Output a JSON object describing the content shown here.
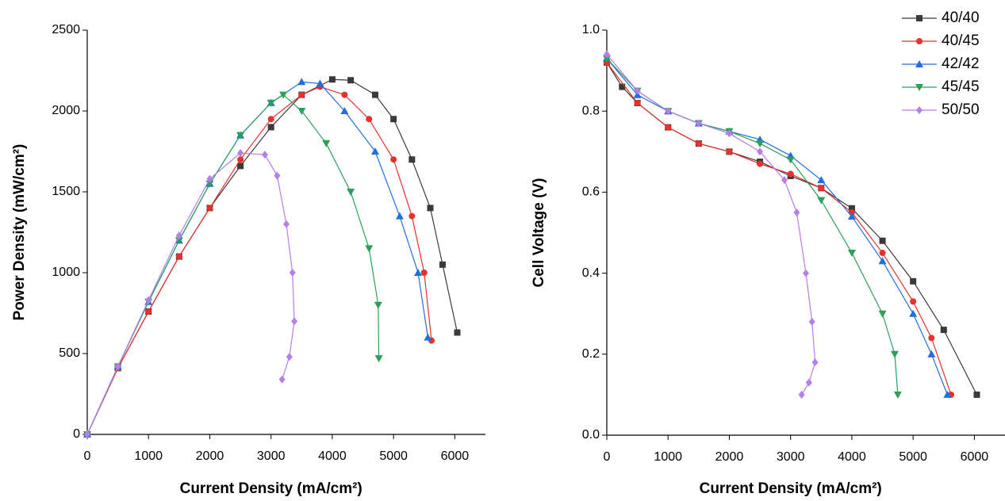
{
  "chart_data": [
    {
      "type": "line",
      "xlabel": "Current Density (mA/cm²)",
      "ylabel": "Power Density (mW/cm²)",
      "xlim": [
        0,
        6500
      ],
      "xticks": [
        0,
        1000,
        2000,
        3000,
        4000,
        5000,
        6000
      ],
      "ylim": [
        0,
        2500
      ],
      "yticks": [
        0,
        500,
        1000,
        1500,
        2000,
        2500
      ],
      "series": [
        {
          "color": "#3a3a3a",
          "marker": "square",
          "x": [
            0,
            500,
            1000,
            1500,
            2000,
            2500,
            3000,
            3500,
            4000,
            4300,
            4700,
            5000,
            5300,
            5600,
            5800,
            6040
          ],
          "values": [
            0,
            410,
            760,
            1100,
            1400,
            1660,
            1900,
            2100,
            2195,
            2190,
            2100,
            1950,
            1700,
            1400,
            1050,
            630
          ]
        },
        {
          "color": "#e8302c",
          "marker": "circle",
          "x": [
            0,
            500,
            1000,
            1500,
            2000,
            2500,
            3000,
            3500,
            3800,
            4200,
            4600,
            5000,
            5300,
            5500,
            5620
          ],
          "values": [
            0,
            410,
            760,
            1100,
            1400,
            1700,
            1950,
            2100,
            2150,
            2100,
            1950,
            1700,
            1350,
            1000,
            580
          ]
        },
        {
          "color": "#1f6fe0",
          "marker": "triangle-up",
          "x": [
            0,
            500,
            1000,
            1500,
            2000,
            2500,
            3000,
            3500,
            3800,
            4200,
            4700,
            5100,
            5400,
            5560
          ],
          "values": [
            0,
            420,
            820,
            1200,
            1550,
            1850,
            2050,
            2180,
            2170,
            2000,
            1750,
            1350,
            1000,
            600
          ]
        },
        {
          "color": "#2ca05a",
          "marker": "triangle-down",
          "x": [
            0,
            500,
            1000,
            1500,
            2000,
            2500,
            3000,
            3200,
            3500,
            3900,
            4300,
            4600,
            4750,
            4760
          ],
          "values": [
            0,
            420,
            820,
            1200,
            1550,
            1850,
            2050,
            2100,
            2000,
            1800,
            1500,
            1150,
            800,
            470
          ]
        },
        {
          "color": "#b57ee8",
          "marker": "diamond",
          "x": [
            0,
            500,
            1000,
            1500,
            2000,
            2500,
            2900,
            3100,
            3250,
            3350,
            3380,
            3300,
            3180
          ],
          "values": [
            0,
            420,
            830,
            1230,
            1580,
            1740,
            1730,
            1600,
            1300,
            1000,
            700,
            480,
            340
          ]
        }
      ]
    },
    {
      "type": "line",
      "xlabel": "Current Density (mA/cm²)",
      "ylabel": "Cell Voltage (V)",
      "xlim": [
        0,
        6500
      ],
      "xticks": [
        0,
        1000,
        2000,
        3000,
        4000,
        5000,
        6000
      ],
      "ylim": [
        0,
        1
      ],
      "yticks": [
        {
          "value": 0,
          "label": "0.0"
        },
        0.2,
        0.4,
        0.6,
        0.8,
        {
          "value": 1,
          "label": "1.0"
        }
      ],
      "legend": "upper right",
      "series": [
        {
          "name": "40/40",
          "color": "#3a3a3a",
          "marker": "square",
          "x": [
            0,
            250,
            500,
            1000,
            1500,
            2000,
            2500,
            3000,
            3500,
            4000,
            4500,
            5000,
            5500,
            6040
          ],
          "values": [
            0.92,
            0.86,
            0.82,
            0.76,
            0.72,
            0.7,
            0.675,
            0.64,
            0.61,
            0.56,
            0.48,
            0.38,
            0.26,
            0.1
          ]
        },
        {
          "name": "40/45",
          "color": "#e8302c",
          "marker": "circle",
          "x": [
            0,
            500,
            1000,
            1500,
            2000,
            2500,
            3000,
            3500,
            4000,
            4500,
            5000,
            5300,
            5620
          ],
          "values": [
            0.92,
            0.82,
            0.76,
            0.72,
            0.7,
            0.67,
            0.645,
            0.61,
            0.55,
            0.45,
            0.33,
            0.24,
            0.1
          ]
        },
        {
          "name": "42/42",
          "color": "#1f6fe0",
          "marker": "triangle-up",
          "x": [
            0,
            500,
            1000,
            1500,
            2000,
            2500,
            3000,
            3500,
            4000,
            4500,
            5000,
            5300,
            5560
          ],
          "values": [
            0.93,
            0.84,
            0.8,
            0.77,
            0.75,
            0.73,
            0.69,
            0.63,
            0.54,
            0.43,
            0.3,
            0.2,
            0.1
          ]
        },
        {
          "name": "45/45",
          "color": "#2ca05a",
          "marker": "triangle-down",
          "x": [
            0,
            500,
            1000,
            1500,
            2000,
            2500,
            3000,
            3500,
            4000,
            4500,
            4700,
            4750
          ],
          "values": [
            0.93,
            0.85,
            0.8,
            0.77,
            0.75,
            0.72,
            0.68,
            0.58,
            0.45,
            0.3,
            0.2,
            0.1
          ]
        },
        {
          "name": "50/50",
          "color": "#b57ee8",
          "marker": "diamond",
          "x": [
            0,
            500,
            1000,
            1500,
            2000,
            2500,
            2900,
            3100,
            3250,
            3350,
            3400,
            3300,
            3180
          ],
          "values": [
            0.94,
            0.85,
            0.8,
            0.77,
            0.745,
            0.7,
            0.63,
            0.55,
            0.4,
            0.28,
            0.18,
            0.13,
            0.1
          ]
        }
      ]
    }
  ]
}
